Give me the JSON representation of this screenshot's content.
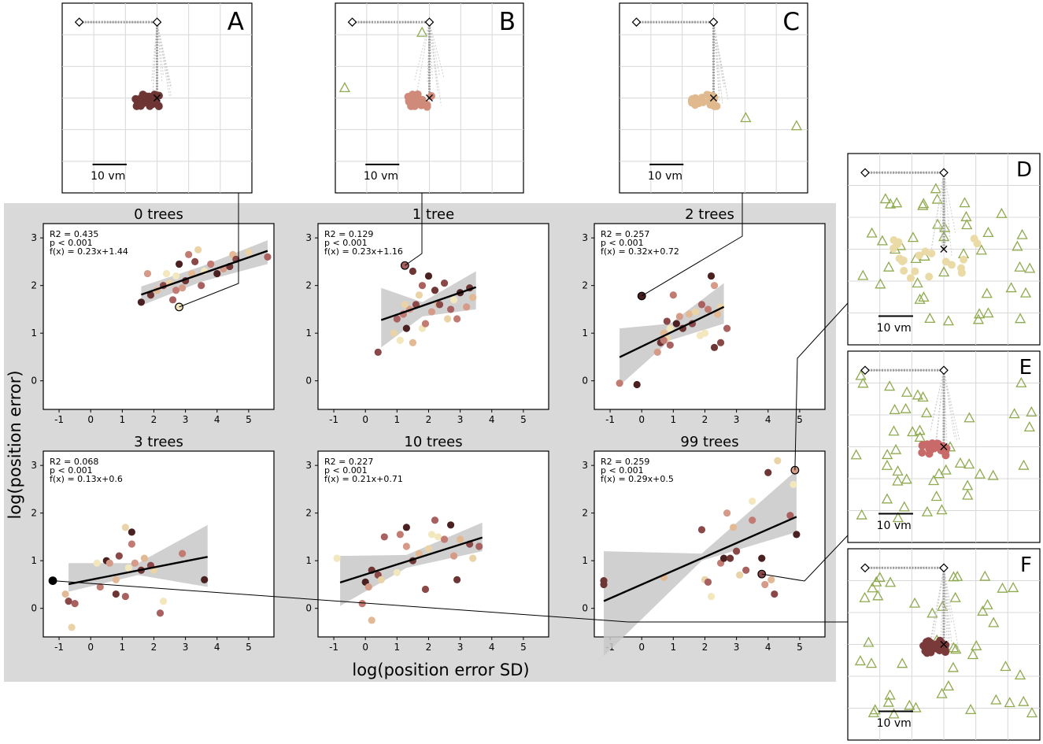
{
  "figure": {
    "xlabel": "log(position error SD)",
    "ylabel": "log(position error)",
    "scale_bar_label": "10 vm",
    "colors": {
      "background_band": "#d9d9d9",
      "regression_line": "#000000",
      "ci_band": "#c8c8c8",
      "goal_marker": "#cc2200",
      "tree_marker": "#8faa4f",
      "grid": "#d8d8d8"
    }
  },
  "chart_data": [
    {
      "type": "scatter",
      "title": "0 trees",
      "stats": [
        "R2 = 0.435",
        "p < 0.001",
        "f(x) = 0.23x+1.44"
      ],
      "slope": 0.23,
      "intercept": 1.44,
      "line_range": [
        1.6,
        5.6
      ],
      "ci": [
        [
          1.6,
          1.58,
          1.98
        ],
        [
          3.5,
          2.08,
          2.4
        ],
        [
          5.6,
          2.45,
          2.95
        ]
      ],
      "xlim": [
        -1.5,
        5.8
      ],
      "ylim": [
        -0.6,
        3.3
      ],
      "xticks": [
        -1,
        0,
        1,
        2,
        3,
        4,
        5
      ],
      "yticks": [
        0,
        1,
        2,
        3
      ],
      "callout": {
        "x": 2.8,
        "y": 1.55,
        "to": "A"
      },
      "points": [
        [
          1.6,
          1.65
        ],
        [
          1.8,
          2.25
        ],
        [
          1.9,
          1.8
        ],
        [
          2.1,
          1.9
        ],
        [
          2.3,
          2.0
        ],
        [
          2.5,
          2.05
        ],
        [
          2.6,
          1.7
        ],
        [
          2.7,
          2.2
        ],
        [
          2.7,
          1.9
        ],
        [
          2.8,
          2.45
        ],
        [
          2.9,
          1.95
        ],
        [
          3.0,
          2.1
        ],
        [
          3.2,
          2.25
        ],
        [
          3.3,
          2.5
        ],
        [
          3.4,
          2.75
        ],
        [
          3.5,
          2.0
        ],
        [
          3.6,
          2.3
        ],
        [
          3.8,
          2.45
        ],
        [
          4.0,
          2.25
        ],
        [
          4.2,
          2.35
        ],
        [
          4.4,
          2.4
        ],
        [
          4.5,
          2.65
        ],
        [
          4.6,
          2.55
        ],
        [
          5.0,
          2.7
        ],
        [
          5.6,
          2.6
        ],
        [
          2.4,
          2.25
        ],
        [
          3.1,
          2.65
        ]
      ]
    },
    {
      "type": "scatter",
      "title": "1 tree",
      "stats": [
        "R2 = 0.129",
        "p < 0.001",
        "f(x) = 0.23x+1.16"
      ],
      "slope": 0.23,
      "intercept": 1.16,
      "line_range": [
        0.5,
        3.5
      ],
      "ci": [
        [
          0.5,
          0.7,
          1.95
        ],
        [
          1.8,
          1.35,
          1.65
        ],
        [
          3.5,
          1.5,
          2.3
        ]
      ],
      "xlim": [
        -1.5,
        5.8
      ],
      "ylim": [
        -0.6,
        3.3
      ],
      "xticks": [
        -1,
        0,
        1,
        2,
        3,
        4,
        5
      ],
      "yticks": [
        0,
        1,
        2,
        3
      ],
      "callout": {
        "x": 1.25,
        "y": 2.42,
        "to": "B"
      },
      "points": [
        [
          0.4,
          0.6
        ],
        [
          0.9,
          1.0
        ],
        [
          1.0,
          1.3
        ],
        [
          1.1,
          0.85
        ],
        [
          1.2,
          1.4
        ],
        [
          1.3,
          1.1
        ],
        [
          1.4,
          1.5
        ],
        [
          1.5,
          2.3
        ],
        [
          1.5,
          0.8
        ],
        [
          1.6,
          1.6
        ],
        [
          1.7,
          1.8
        ],
        [
          1.8,
          2.0
        ],
        [
          1.8,
          1.1
        ],
        [
          1.9,
          1.2
        ],
        [
          2.0,
          2.2
        ],
        [
          2.1,
          1.45
        ],
        [
          2.2,
          1.9
        ],
        [
          2.3,
          1.6
        ],
        [
          2.5,
          2.05
        ],
        [
          2.6,
          1.3
        ],
        [
          2.7,
          1.5
        ],
        [
          2.8,
          1.7
        ],
        [
          2.9,
          1.3
        ],
        [
          3.0,
          1.85
        ],
        [
          3.2,
          1.55
        ],
        [
          3.3,
          1.95
        ],
        [
          3.4,
          1.75
        ],
        [
          2.35,
          1.6
        ],
        [
          1.25,
          1.6
        ]
      ]
    },
    {
      "type": "scatter",
      "title": "2 trees",
      "stats": [
        "R2 = 0.257",
        "p < 0.001",
        "f(x) = 0.32x+0.72"
      ],
      "slope": 0.32,
      "intercept": 0.72,
      "line_range": [
        -0.7,
        2.6
      ],
      "ci": [
        [
          -0.7,
          -0.1,
          1.1
        ],
        [
          0.9,
          0.85,
          1.2
        ],
        [
          2.6,
          1.2,
          2.05
        ]
      ],
      "xlim": [
        -1.5,
        5.8
      ],
      "ylim": [
        -0.6,
        3.3
      ],
      "xticks": [
        -1,
        0,
        1,
        2,
        3,
        4,
        5
      ],
      "yticks": [
        0,
        1,
        2,
        3
      ],
      "callout": {
        "x": 0.0,
        "y": 1.78,
        "to": "C"
      },
      "points": [
        [
          -0.7,
          -0.05
        ],
        [
          -0.15,
          -0.08
        ],
        [
          0.5,
          0.6
        ],
        [
          0.6,
          0.8
        ],
        [
          0.7,
          1.0
        ],
        [
          0.8,
          1.25
        ],
        [
          0.8,
          0.9
        ],
        [
          0.9,
          0.75
        ],
        [
          0.9,
          1.1
        ],
        [
          1.0,
          1.8
        ],
        [
          1.1,
          1.2
        ],
        [
          1.2,
          1.35
        ],
        [
          1.3,
          1.1
        ],
        [
          1.5,
          1.4
        ],
        [
          1.6,
          1.2
        ],
        [
          1.7,
          1.45
        ],
        [
          1.9,
          1.6
        ],
        [
          2.0,
          1.0
        ],
        [
          2.1,
          1.5
        ],
        [
          2.2,
          2.2
        ],
        [
          2.3,
          2.0
        ],
        [
          2.3,
          0.7
        ],
        [
          2.4,
          1.4
        ],
        [
          2.5,
          0.8
        ],
        [
          2.5,
          1.55
        ],
        [
          2.7,
          1.1
        ],
        [
          1.85,
          0.95
        ],
        [
          0.7,
          0.85
        ]
      ]
    },
    {
      "type": "scatter",
      "title": "3 trees",
      "stats": [
        "R2 = 0.068",
        "p < 0.001",
        "f(x) = 0.13x+0.6"
      ],
      "slope": 0.13,
      "intercept": 0.6,
      "line_range": [
        -0.7,
        3.7
      ],
      "ci": [
        [
          -0.7,
          0.35,
          0.95
        ],
        [
          1.5,
          0.7,
          0.95
        ],
        [
          3.7,
          0.45,
          1.75
        ]
      ],
      "xlim": [
        -1.5,
        5.8
      ],
      "ylim": [
        -0.6,
        3.3
      ],
      "xticks": [
        -1,
        0,
        1,
        2,
        3,
        4,
        5
      ],
      "yticks": [
        0,
        1,
        2,
        3
      ],
      "callout": {
        "x": -1.2,
        "y": 0.58,
        "to": "F"
      },
      "points": [
        [
          -0.8,
          0.3
        ],
        [
          -0.7,
          0.15
        ],
        [
          -0.6,
          -0.4
        ],
        [
          -0.5,
          0.1
        ],
        [
          0.2,
          0.95
        ],
        [
          0.3,
          0.45
        ],
        [
          0.5,
          1.0
        ],
        [
          0.6,
          0.95
        ],
        [
          0.8,
          0.3
        ],
        [
          0.8,
          0.6
        ],
        [
          0.9,
          1.1
        ],
        [
          1.1,
          1.7
        ],
        [
          1.1,
          0.25
        ],
        [
          1.2,
          0.85
        ],
        [
          1.3,
          1.35
        ],
        [
          1.3,
          1.6
        ],
        [
          1.4,
          0.95
        ],
        [
          1.6,
          0.8
        ],
        [
          1.7,
          1.05
        ],
        [
          1.9,
          0.9
        ],
        [
          2.0,
          0.8
        ],
        [
          2.2,
          -0.1
        ],
        [
          2.3,
          0.15
        ],
        [
          2.9,
          1.15
        ],
        [
          3.6,
          0.6
        ]
      ]
    },
    {
      "type": "scatter",
      "title": "10 trees",
      "stats": [
        "R2 = 0.227",
        "p < 0.001",
        "f(x) = 0.21x+0.71"
      ],
      "slope": 0.21,
      "intercept": 0.71,
      "line_range": [
        -0.8,
        3.7
      ],
      "ci": [
        [
          -0.8,
          0.05,
          1.1
        ],
        [
          1.3,
          0.85,
          1.12
        ],
        [
          3.7,
          1.2,
          1.8
        ]
      ],
      "xlim": [
        -1.5,
        5.8
      ],
      "ylim": [
        -0.6,
        3.3
      ],
      "xticks": [
        -1,
        0,
        1,
        2,
        3,
        4,
        5
      ],
      "yticks": [
        0,
        1,
        2,
        3
      ],
      "points": [
        [
          -0.9,
          1.05
        ],
        [
          -0.1,
          0.1
        ],
        [
          0.0,
          0.55
        ],
        [
          0.1,
          0.45
        ],
        [
          0.2,
          0.8
        ],
        [
          0.2,
          -0.25
        ],
        [
          0.4,
          0.7
        ],
        [
          0.5,
          0.6
        ],
        [
          0.6,
          1.5
        ],
        [
          1.0,
          0.75
        ],
        [
          1.1,
          1.55
        ],
        [
          1.3,
          1.7
        ],
        [
          1.3,
          1.3
        ],
        [
          1.5,
          1.0
        ],
        [
          1.7,
          1.15
        ],
        [
          1.9,
          0.4
        ],
        [
          2.0,
          1.25
        ],
        [
          2.2,
          1.85
        ],
        [
          2.3,
          1.5
        ],
        [
          2.5,
          1.45
        ],
        [
          2.7,
          1.75
        ],
        [
          2.8,
          1.1
        ],
        [
          2.9,
          0.6
        ],
        [
          3.0,
          1.45
        ],
        [
          3.3,
          1.35
        ],
        [
          3.4,
          1.05
        ],
        [
          3.6,
          1.3
        ],
        [
          2.1,
          1.55
        ]
      ]
    },
    {
      "type": "scatter",
      "title": "99 trees",
      "stats": [
        "R2 = 0.259",
        "p < 0.001",
        "f(x) = 0.29x+0.5"
      ],
      "slope": 0.29,
      "intercept": 0.5,
      "line_range": [
        -1.2,
        4.9
      ],
      "ci": [
        [
          -1.2,
          -1.0,
          1.2
        ],
        [
          1.9,
          1.0,
          1.15
        ],
        [
          4.9,
          1.6,
          2.9
        ]
      ],
      "xlim": [
        -1.5,
        5.8
      ],
      "ylim": [
        -0.6,
        3.3
      ],
      "xticks": [
        -1,
        0,
        1,
        2,
        3,
        4,
        5
      ],
      "yticks": [
        0,
        1,
        2,
        3
      ],
      "callout2": [
        {
          "x": 4.85,
          "y": 2.9,
          "to": "D"
        },
        {
          "x": 3.8,
          "y": 0.72,
          "to": "E"
        }
      ],
      "points": [
        [
          -1.2,
          0.5
        ],
        [
          0.7,
          0.65
        ],
        [
          1.9,
          1.65
        ],
        [
          2.0,
          0.6
        ],
        [
          2.1,
          0.55
        ],
        [
          2.2,
          0.25
        ],
        [
          2.5,
          0.95
        ],
        [
          2.6,
          1.05
        ],
        [
          2.7,
          2.0
        ],
        [
          2.8,
          1.05
        ],
        [
          2.9,
          1.7
        ],
        [
          3.0,
          1.2
        ],
        [
          3.1,
          0.7
        ],
        [
          3.3,
          0.8
        ],
        [
          3.5,
          2.25
        ],
        [
          3.5,
          1.85
        ],
        [
          3.8,
          1.05
        ],
        [
          3.9,
          0.5
        ],
        [
          4.0,
          2.85
        ],
        [
          4.1,
          0.6
        ],
        [
          4.2,
          0.3
        ],
        [
          4.3,
          3.1
        ],
        [
          4.7,
          1.95
        ],
        [
          4.8,
          2.6
        ],
        [
          4.85,
          2.9
        ],
        [
          4.9,
          1.55
        ],
        [
          3.8,
          0.72
        ],
        [
          -1.2,
          0.58
        ]
      ]
    }
  ],
  "insets": [
    {
      "label": "A",
      "has_trees": false
    },
    {
      "label": "B",
      "has_trees": true
    },
    {
      "label": "C",
      "has_trees": true
    },
    {
      "label": "D",
      "has_trees": true
    },
    {
      "label": "E",
      "has_trees": true
    },
    {
      "label": "F",
      "has_trees": true
    }
  ]
}
